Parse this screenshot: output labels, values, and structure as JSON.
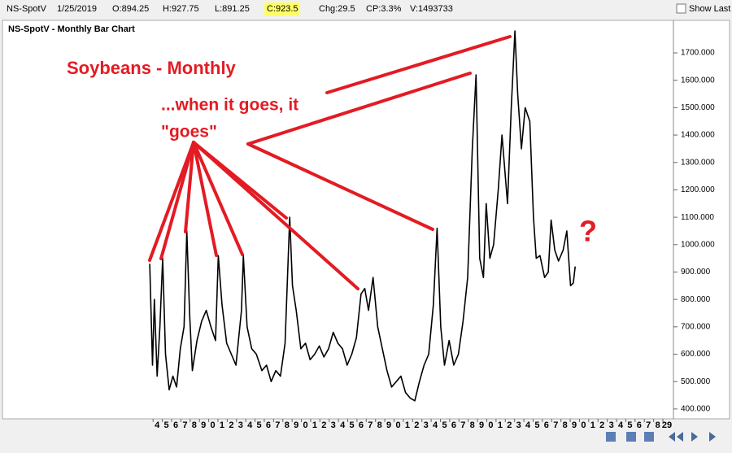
{
  "toolbar": {
    "symbol": "NS-SpotV",
    "date": "1/25/2019",
    "open": "O:894.25",
    "high": "H:927.75",
    "low": "L:891.25",
    "close": "C:923.5",
    "change": "Chg:29.5",
    "change_pct": "CP:3.3%",
    "volume": "V:1493733",
    "show_last": "Show Last"
  },
  "chart_data": {
    "type": "line",
    "title": "NS-SpotV - Monthly Bar Chart",
    "annotations": [
      {
        "text": "Soybeans - Monthly"
      },
      {
        "text": "...when it goes, it"
      },
      {
        "text": "\"goes\""
      },
      {
        "text": "?"
      }
    ],
    "annotation_color": "#e31b23",
    "color": "#000000",
    "x": [
      1973.2,
      1973.5,
      1973.7,
      1974.0,
      1974.3,
      1974.6,
      1974.9,
      1975.3,
      1975.7,
      1976.1,
      1976.5,
      1976.9,
      1977.2,
      1977.5,
      1977.8,
      1978.3,
      1978.8,
      1979.3,
      1979.8,
      1980.3,
      1980.6,
      1981.0,
      1981.5,
      1982.0,
      1982.5,
      1983.1,
      1983.3,
      1983.7,
      1984.2,
      1984.7,
      1985.3,
      1985.8,
      1986.3,
      1986.8,
      1987.3,
      1987.8,
      1988.3,
      1988.6,
      1989.0,
      1989.5,
      1990.0,
      1990.5,
      1991.0,
      1991.5,
      1992.0,
      1992.5,
      1993.0,
      1993.5,
      1994.0,
      1994.5,
      1995.0,
      1995.5,
      1996.0,
      1996.4,
      1996.8,
      1997.3,
      1997.8,
      1998.3,
      1998.8,
      1999.3,
      1999.8,
      2000.3,
      2000.8,
      2001.3,
      2001.8,
      2002.3,
      2002.8,
      2003.3,
      2003.8,
      2004.2,
      2004.6,
      2005.0,
      2005.5,
      2006.0,
      2006.5,
      2007.0,
      2007.5,
      2008.0,
      2008.4,
      2008.8,
      2009.2,
      2009.5,
      2009.9,
      2010.3,
      2010.8,
      2011.2,
      2011.8,
      2012.2,
      2012.6,
      2012.9,
      2013.3,
      2013.7,
      2014.2,
      2014.6,
      2014.9,
      2015.3,
      2015.8,
      2016.2,
      2016.5,
      2016.9,
      2017.3,
      2017.8,
      2018.2,
      2018.6,
      2018.9,
      2019.1
    ],
    "values": [
      930,
      560,
      800,
      520,
      700,
      950,
      600,
      470,
      520,
      480,
      620,
      700,
      1050,
      750,
      540,
      650,
      720,
      760,
      700,
      650,
      960,
      780,
      640,
      600,
      560,
      760,
      960,
      700,
      620,
      600,
      540,
      560,
      500,
      540,
      520,
      640,
      1100,
      850,
      760,
      620,
      640,
      580,
      600,
      630,
      590,
      620,
      680,
      640,
      620,
      560,
      600,
      660,
      820,
      840,
      760,
      880,
      700,
      620,
      540,
      480,
      500,
      520,
      460,
      440,
      430,
      500,
      560,
      600,
      780,
      1060,
      700,
      560,
      650,
      560,
      600,
      720,
      880,
      1350,
      1620,
      950,
      880,
      1150,
      950,
      1000,
      1200,
      1400,
      1150,
      1500,
      1780,
      1550,
      1350,
      1500,
      1450,
      1100,
      950,
      960,
      880,
      900,
      1090,
      980,
      940,
      980,
      1050,
      850,
      860,
      920
    ],
    "xlim": [
      1958.1,
      2029.7
    ],
    "ylim": [
      364,
      1804
    ],
    "xticks": [
      {
        "value": 1974,
        "label": "4"
      },
      {
        "value": 1975,
        "label": "5"
      },
      {
        "value": 1976,
        "label": "6"
      },
      {
        "value": 1977,
        "label": "7"
      },
      {
        "value": 1978,
        "label": "8"
      },
      {
        "value": 1979,
        "label": "9"
      },
      {
        "value": 1980,
        "label": "0"
      },
      {
        "value": 1981,
        "label": "1"
      },
      {
        "value": 1982,
        "label": "2"
      },
      {
        "value": 1983,
        "label": "3"
      },
      {
        "value": 1984,
        "label": "4"
      },
      {
        "value": 1985,
        "label": "5"
      },
      {
        "value": 1986,
        "label": "6"
      },
      {
        "value": 1987,
        "label": "7"
      },
      {
        "value": 1988,
        "label": "8"
      },
      {
        "value": 1989,
        "label": "9"
      },
      {
        "value": 1990,
        "label": "0"
      },
      {
        "value": 1991,
        "label": "1"
      },
      {
        "value": 1992,
        "label": "2"
      },
      {
        "value": 1993,
        "label": "3"
      },
      {
        "value": 1994,
        "label": "4"
      },
      {
        "value": 1995,
        "label": "5"
      },
      {
        "value": 1996,
        "label": "6"
      },
      {
        "value": 1997,
        "label": "7"
      },
      {
        "value": 1998,
        "label": "8"
      },
      {
        "value": 1999,
        "label": "9"
      },
      {
        "value": 2000,
        "label": "0"
      },
      {
        "value": 2001,
        "label": "1"
      },
      {
        "value": 2002,
        "label": "2"
      },
      {
        "value": 2003,
        "label": "3"
      },
      {
        "value": 2004,
        "label": "4"
      },
      {
        "value": 2005,
        "label": "5"
      },
      {
        "value": 2006,
        "label": "6"
      },
      {
        "value": 2007,
        "label": "7"
      },
      {
        "value": 2008,
        "label": "8"
      },
      {
        "value": 2009,
        "label": "9"
      },
      {
        "value": 2010,
        "label": "0"
      },
      {
        "value": 2011,
        "label": "1"
      },
      {
        "value": 2012,
        "label": "2"
      },
      {
        "value": 2013,
        "label": "3"
      },
      {
        "value": 2014,
        "label": "4"
      },
      {
        "value": 2015,
        "label": "5"
      },
      {
        "value": 2016,
        "label": "6"
      },
      {
        "value": 2017,
        "label": "7"
      },
      {
        "value": 2018,
        "label": "8"
      },
      {
        "value": 2019,
        "label": "9"
      },
      {
        "value": 2020,
        "label": "0"
      },
      {
        "value": 2021,
        "label": "1"
      },
      {
        "value": 2022,
        "label": "2"
      },
      {
        "value": 2023,
        "label": "3"
      },
      {
        "value": 2024,
        "label": "4"
      },
      {
        "value": 2025,
        "label": "5"
      },
      {
        "value": 2026,
        "label": "6"
      },
      {
        "value": 2027,
        "label": "7"
      },
      {
        "value": 2028,
        "label": "8"
      },
      {
        "value": 2029,
        "label": "29"
      }
    ],
    "yticks": [
      {
        "value": 400,
        "label": "400.000"
      },
      {
        "value": 500,
        "label": "500.000"
      },
      {
        "value": 600,
        "label": "600.000"
      },
      {
        "value": 700,
        "label": "700.000"
      },
      {
        "value": 800,
        "label": "800.000"
      },
      {
        "value": 900,
        "label": "900.000"
      },
      {
        "value": 1000,
        "label": "1000.000"
      },
      {
        "value": 1100,
        "label": "1100.000"
      },
      {
        "value": 1200,
        "label": "1200.000"
      },
      {
        "value": 1300,
        "label": "1300.000"
      },
      {
        "value": 1400,
        "label": "1400.000"
      },
      {
        "value": 1500,
        "label": "1500.000"
      },
      {
        "value": 1600,
        "label": "1600.000"
      },
      {
        "value": 1700,
        "label": "1700.000"
      }
    ]
  }
}
